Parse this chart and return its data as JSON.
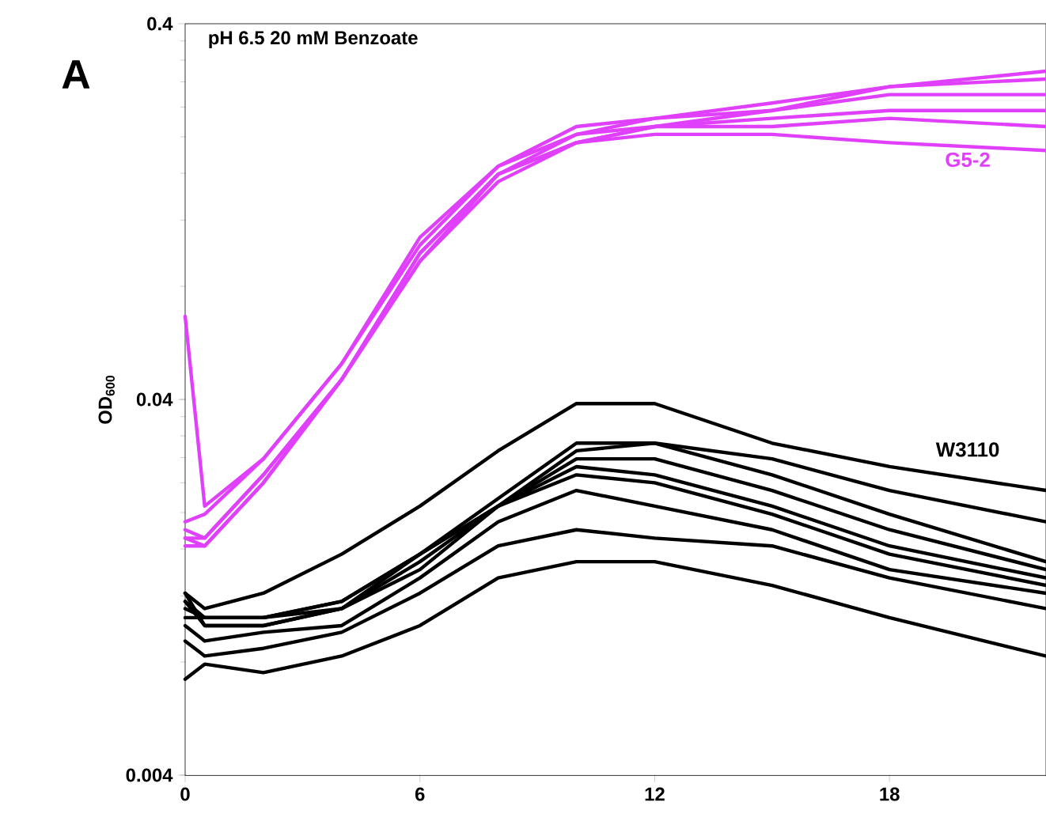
{
  "chart_data": {
    "type": "line",
    "title": "pH 6.5 20 mM Benzoate",
    "ylabel": "OD$_{600}$",
    "annotations": [
      "A"
    ],
    "x": [
      0,
      0.5,
      2,
      4,
      6,
      8,
      10,
      12,
      15,
      18,
      22
    ],
    "xlim": [
      0,
      22
    ],
    "ylim": [
      0.004,
      0.4
    ],
    "xticks": [
      0,
      6,
      12,
      18
    ],
    "yticks": [
      0.004,
      0.04,
      0.4
    ],
    "log": "y",
    "grid": false,
    "legend": false,
    "marker": "none",
    "line_style": "solid",
    "series": [
      {
        "color": "#e040fb",
        "values": [
          0.0666,
          0.0208,
          0.0278,
          0.0498,
          0.108,
          0.167,
          0.213,
          0.224,
          0.246,
          0.272,
          0.299
        ]
      },
      {
        "color": "#e040fb",
        "values": [
          0.0189,
          0.0198,
          0.0278,
          0.0498,
          0.103,
          0.167,
          0.203,
          0.224,
          0.235,
          0.272,
          0.285
        ]
      },
      {
        "color": "#e040fb",
        "values": [
          0.018,
          0.0171,
          0.0252,
          0.0452,
          0.098,
          0.159,
          0.203,
          0.213,
          0.235,
          0.259,
          0.259
        ]
      },
      {
        "color": "#e040fb",
        "values": [
          0.0171,
          0.0171,
          0.0252,
          0.0452,
          0.098,
          0.159,
          0.193,
          0.213,
          0.224,
          0.235,
          0.235
        ]
      },
      {
        "color": "#e040fb",
        "values": [
          0.0163,
          0.0163,
          0.024,
          0.0452,
          0.0933,
          0.159,
          0.193,
          0.213,
          0.213,
          0.224,
          0.213
        ]
      },
      {
        "name": "G5-2",
        "color": "#e040fb",
        "values": [
          0.0171,
          0.0163,
          0.024,
          0.0452,
          0.0933,
          0.152,
          0.193,
          0.203,
          0.203,
          0.193,
          0.184
        ]
      },
      {
        "name": "W3110",
        "color": "#000000",
        "values": [
          0.0122,
          0.0111,
          0.0122,
          0.0155,
          0.0208,
          0.0292,
          0.039,
          0.039,
          0.0306,
          0.0265,
          0.0229
        ]
      },
      {
        "color": "#000000",
        "values": [
          0.0116,
          0.0105,
          0.0105,
          0.0116,
          0.0155,
          0.0218,
          0.0306,
          0.0306,
          0.0278,
          0.0229,
          0.0189
        ]
      },
      {
        "color": "#000000",
        "values": [
          0.0111,
          0.0105,
          0.0105,
          0.0116,
          0.0155,
          0.0208,
          0.0292,
          0.0306,
          0.0252,
          0.0198,
          0.0148
        ]
      },
      {
        "color": "#000000",
        "values": [
          0.0105,
          0.0105,
          0.0105,
          0.0111,
          0.0155,
          0.0208,
          0.0278,
          0.0278,
          0.0229,
          0.018,
          0.0141
        ]
      },
      {
        "color": "#000000",
        "values": [
          0.0116,
          0.01,
          0.01,
          0.0111,
          0.0148,
          0.0208,
          0.0265,
          0.0252,
          0.0208,
          0.0163,
          0.0134
        ]
      },
      {
        "color": "#000000",
        "values": [
          0.0122,
          0.01,
          0.01,
          0.0111,
          0.0141,
          0.0208,
          0.0252,
          0.024,
          0.0198,
          0.0155,
          0.0128
        ]
      },
      {
        "color": "#000000",
        "values": [
          0.01,
          0.0091,
          0.0096,
          0.01,
          0.0134,
          0.0189,
          0.0229,
          0.0208,
          0.018,
          0.0141,
          0.0122
        ]
      },
      {
        "color": "#000000",
        "values": [
          0.0091,
          0.0083,
          0.0087,
          0.0096,
          0.0122,
          0.0163,
          0.018,
          0.0171,
          0.0163,
          0.0134,
          0.0111
        ]
      },
      {
        "color": "#000000",
        "values": [
          0.0072,
          0.0079,
          0.0075,
          0.0083,
          0.01,
          0.0134,
          0.0148,
          0.0148,
          0.0128,
          0.0105,
          0.0083
        ]
      }
    ]
  }
}
